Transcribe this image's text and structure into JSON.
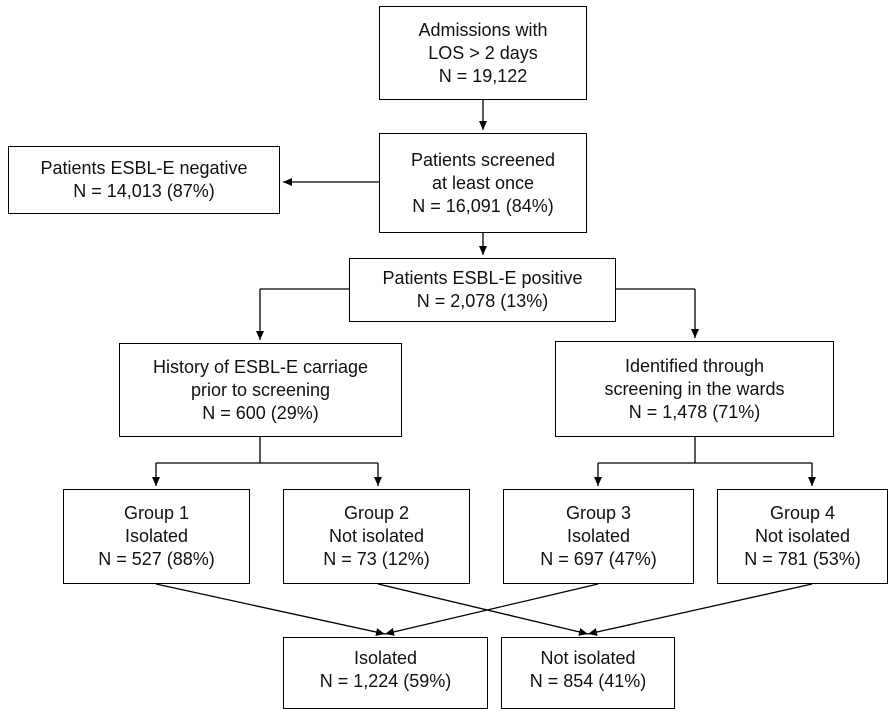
{
  "colors": {
    "stroke": "#000000",
    "text": "#111111",
    "background": "#ffffff"
  },
  "nodes": {
    "admissions": {
      "lines": [
        "Admissions with",
        "LOS > 2 days",
        "N = 19,122"
      ]
    },
    "screened": {
      "lines": [
        "Patients screened",
        "at least once",
        "N = 16,091 (84%)"
      ]
    },
    "negative": {
      "lines": [
        "Patients ESBL-E negative",
        "N = 14,013 (87%)"
      ]
    },
    "positive": {
      "lines": [
        "Patients ESBL-E positive",
        "N = 2,078 (13%)"
      ]
    },
    "history": {
      "lines": [
        "History of ESBL-E carriage",
        "prior to screening",
        "N = 600 (29%)"
      ]
    },
    "identified": {
      "lines": [
        "Identified through",
        "screening in the wards",
        "N = 1,478 (71%)"
      ]
    },
    "group1": {
      "lines": [
        "Group 1",
        "Isolated",
        "N = 527 (88%)"
      ]
    },
    "group2": {
      "lines": [
        "Group 2",
        "Not isolated",
        "N = 73 (12%)"
      ]
    },
    "group3": {
      "lines": [
        "Group 3",
        "Isolated",
        "N = 697 (47%)"
      ]
    },
    "group4": {
      "lines": [
        "Group 4",
        "Not isolated",
        "N = 781 (53%)"
      ]
    },
    "isolated": {
      "lines": [
        "Isolated",
        "N = 1,224 (59%)"
      ]
    },
    "not_isolated": {
      "lines": [
        "Not isolated",
        "N = 854 (41%)"
      ]
    }
  }
}
